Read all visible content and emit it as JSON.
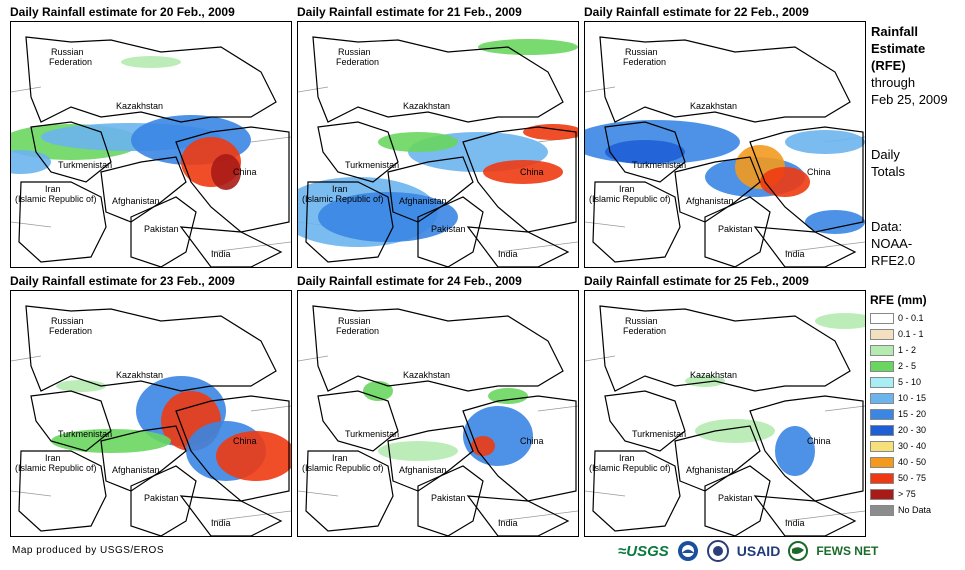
{
  "panels": [
    {
      "title": "Daily Rainfall estimate for 20 Feb., 2009"
    },
    {
      "title": "Daily Rainfall estimate for 21 Feb., 2009"
    },
    {
      "title": "Daily Rainfall estimate for 22 Feb., 2009"
    },
    {
      "title": "Daily Rainfall estimate for 23 Feb., 2009"
    },
    {
      "title": "Daily Rainfall estimate for 24 Feb., 2009"
    },
    {
      "title": "Daily Rainfall estimate for 25 Feb., 2009"
    }
  ],
  "map_labels": {
    "russia_1": "Russian",
    "russia_2": "Federation",
    "kazakhstan": "Kazakhstan",
    "turkmenistan": "Turkmenistan",
    "iran_1": "Iran",
    "iran_2": "(Islamic Republic of)",
    "afghanistan": "Afghanistan",
    "pakistan": "Pakistan",
    "china": "China",
    "india": "India"
  },
  "sidebar": {
    "title_1": "Rainfall",
    "title_2": "Estimate",
    "title_3": "(RFE)",
    "through": "through",
    "date": "Feb 25, 2009",
    "daily": "Daily",
    "totals": "Totals",
    "data_1": "Data:",
    "data_2": "NOAA-",
    "data_3": "RFE2.0"
  },
  "legend": {
    "title": "RFE (mm)",
    "items": [
      {
        "label": "0 - 0.1",
        "color": "#ffffff"
      },
      {
        "label": "0.1 - 1",
        "color": "#f3e0c0"
      },
      {
        "label": "1 - 2",
        "color": "#b5ebb0"
      },
      {
        "label": "2 - 5",
        "color": "#69d65f"
      },
      {
        "label": "5 - 10",
        "color": "#a8eef5"
      },
      {
        "label": "10 - 15",
        "color": "#6cb4ee"
      },
      {
        "label": "15 - 20",
        "color": "#3a86e3"
      },
      {
        "label": "20 - 30",
        "color": "#1f5fd6"
      },
      {
        "label": "30 - 40",
        "color": "#f6e07a"
      },
      {
        "label": "40 - 50",
        "color": "#f39a1e"
      },
      {
        "label": "50 - 75",
        "color": "#ee3a12"
      },
      {
        "label": "> 75",
        "color": "#a91b16"
      },
      {
        "label": "No Data",
        "color": "#8c8c8c"
      }
    ]
  },
  "footer": {
    "credit": "Map produced by USGS/EROS"
  },
  "logos": {
    "usgs": "≈USGS",
    "usaid": "USAID",
    "fews": "FEWS NET"
  }
}
